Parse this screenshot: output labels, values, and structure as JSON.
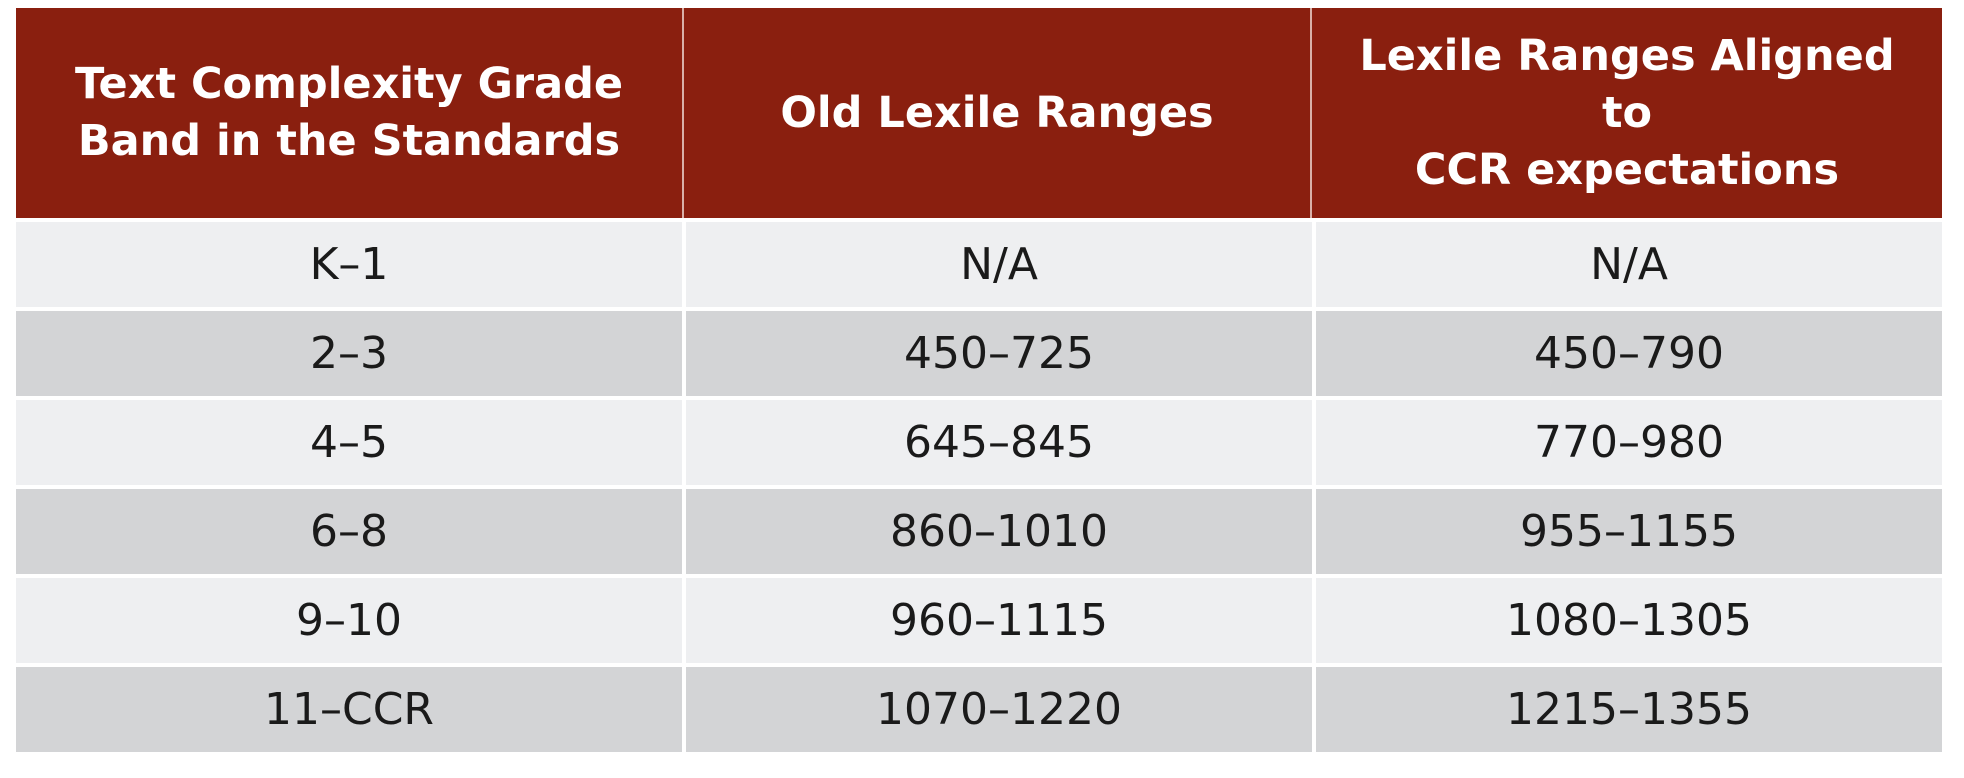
{
  "table": {
    "headers": [
      "Text Complexity Grade\nBand in the Standards",
      "Old Lexile Ranges",
      "Lexile Ranges Aligned\nto\nCCR expectations"
    ],
    "rows": [
      [
        "K–1",
        "N/A",
        "N/A"
      ],
      [
        "2–3",
        "450–725",
        "450–790"
      ],
      [
        "4–5",
        "645–845",
        "770–980"
      ],
      [
        "6–8",
        "860–1010",
        "955–1155"
      ],
      [
        "9–10",
        "960–1115",
        "1080–1305"
      ],
      [
        "11–CCR",
        "1070–1220",
        "1215–1355"
      ]
    ],
    "colors": {
      "header_bg": "#8a1f0f",
      "header_text": "#ffffff",
      "row_light": "#eeeff1",
      "row_dark": "#d3d4d6"
    }
  }
}
